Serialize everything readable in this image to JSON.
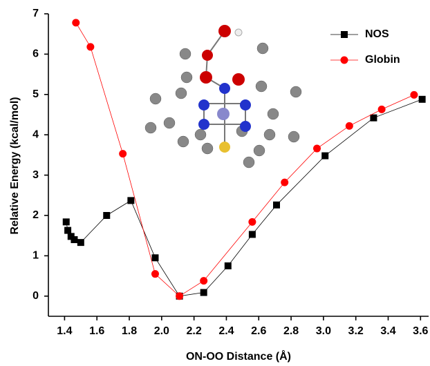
{
  "chart_data": {
    "type": "line",
    "x_label": "ON-OO Distance (Å)",
    "y_label": "Relative Energy (kcal/mol)",
    "xlim": [
      1.3,
      3.65
    ],
    "ylim": [
      -0.5,
      7
    ],
    "xticks": [
      1.4,
      1.6,
      1.8,
      {
        "value": 2.0,
        "label": "2.0"
      },
      2.2,
      2.4,
      2.6,
      2.8,
      {
        "value": 3.0,
        "label": "3.0"
      },
      3.2,
      3.4,
      3.6
    ],
    "yticks": [
      0,
      1,
      2,
      3,
      4,
      5,
      6,
      7
    ],
    "legend": "upper right",
    "series": [
      {
        "name": "NOS",
        "color": "#000000",
        "marker": "square",
        "x": [
          1.41,
          1.42,
          1.44,
          1.46,
          1.5,
          1.66,
          1.81,
          1.96,
          2.11,
          2.26,
          2.41,
          2.56,
          2.71,
          3.01,
          3.31,
          3.61
        ],
        "values": [
          1.84,
          1.63,
          1.48,
          1.4,
          1.33,
          2.0,
          2.37,
          0.95,
          0.0,
          0.09,
          0.75,
          1.53,
          2.26,
          3.48,
          4.42,
          4.88
        ]
      },
      {
        "name": "Globin",
        "color": "#ff0000",
        "marker": "circle",
        "x": [
          1.47,
          1.56,
          1.76,
          1.96,
          2.11,
          2.26,
          2.56,
          2.76,
          2.96,
          3.16,
          3.36,
          3.56
        ],
        "values": [
          6.78,
          6.18,
          3.53,
          0.55,
          0.0,
          0.38,
          1.84,
          2.82,
          3.66,
          4.22,
          4.63,
          4.99
        ]
      }
    ]
  }
}
